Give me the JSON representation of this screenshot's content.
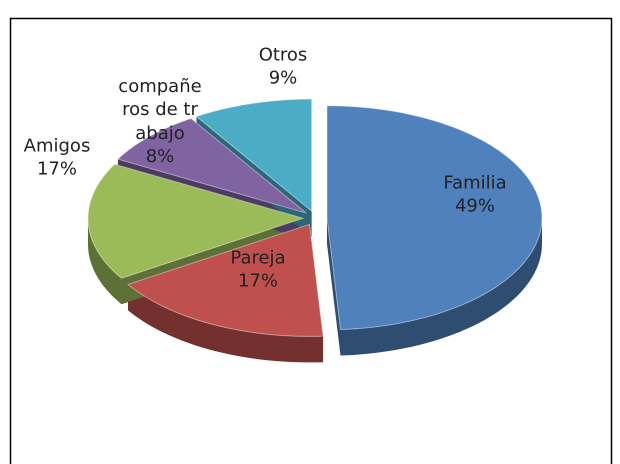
{
  "chart_data": {
    "type": "pie",
    "categories": [
      "Familia",
      "Pareja",
      "Amigos",
      "compañeros de trabajo",
      "Otros"
    ],
    "values": [
      49,
      17,
      17,
      8,
      9
    ],
    "value_labels": [
      "49%",
      "17%",
      "17%",
      "8%",
      "9%"
    ],
    "colors": [
      "#4f81bd",
      "#c0504d",
      "#9bbb59",
      "#8064a2",
      "#4bacc6"
    ]
  }
}
